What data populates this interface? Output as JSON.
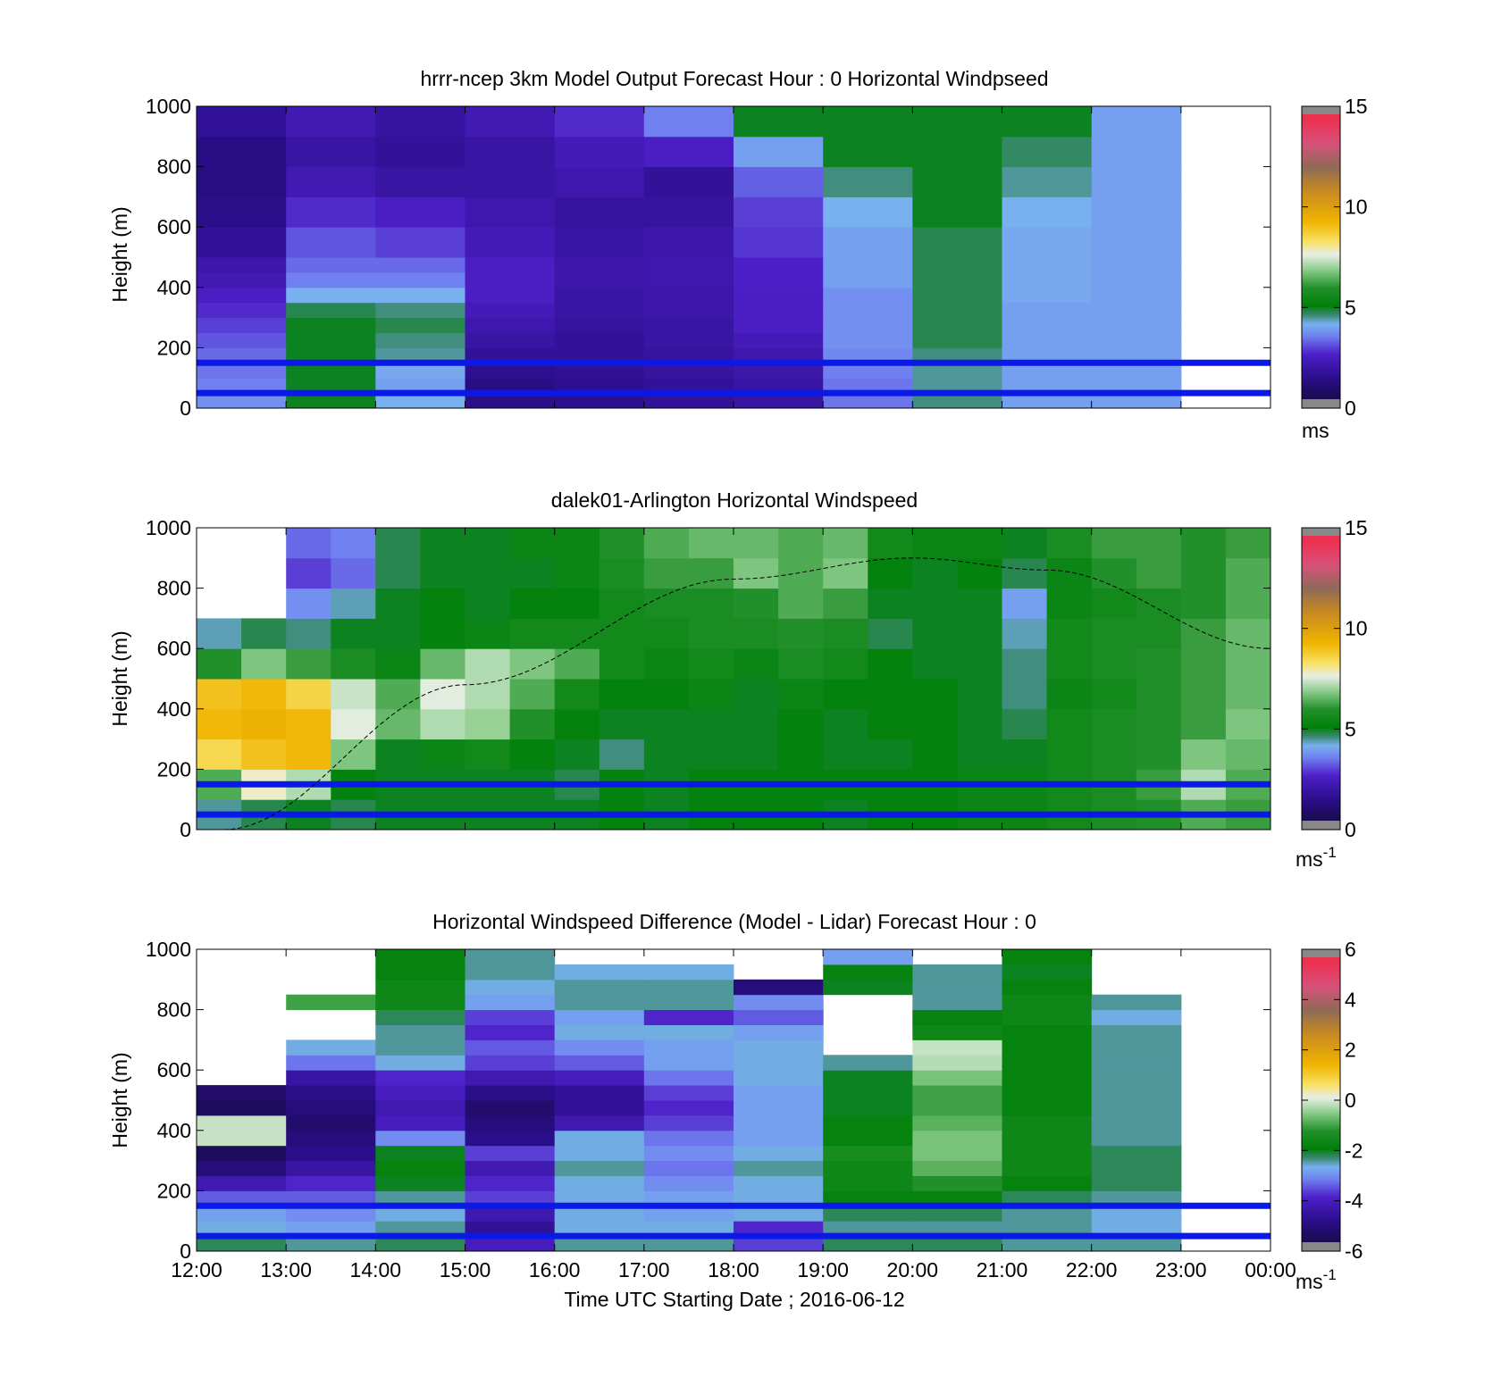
{
  "x_axis": {
    "title": "Time UTC  Starting Date ; 2016-06-12",
    "ticks": [
      "12:00",
      "13:00",
      "14:00",
      "15:00",
      "16:00",
      "17:00",
      "18:00",
      "19:00",
      "20:00",
      "21:00",
      "22:00",
      "23:00",
      "00:00"
    ],
    "range_hours": [
      12,
      24
    ]
  },
  "chart_data": [
    {
      "type": "heatmap",
      "title": "hrrr-ncep 3km Model Output   Forecast Hour : 0 Horizontal Windpseed",
      "ylabel": "Height (m)",
      "ylim": [
        0,
        1000
      ],
      "yticks": [
        "0",
        "200",
        "400",
        "600",
        "800",
        "1000"
      ],
      "colorbar": {
        "min": 0,
        "max": 15,
        "ticks": [
          "0",
          "5",
          "10",
          "15"
        ],
        "unit": "ms"
      },
      "reference_lines_m": [
        50,
        150
      ],
      "x_hours": [
        12,
        13,
        14,
        15,
        16,
        17,
        18,
        19,
        20,
        21,
        22
      ],
      "height_bands_m": [
        0,
        50,
        100,
        150,
        200,
        250,
        300,
        350,
        400,
        450,
        500,
        600,
        700,
        800,
        900,
        1000
      ],
      "values_ms": [
        [
          3.8,
          5.0,
          4.2,
          1.5,
          1.6,
          1.8,
          2.0,
          3.5,
          4.6,
          4.0,
          4.0
        ],
        [
          3.6,
          5.0,
          4.0,
          1.4,
          1.6,
          1.8,
          2.0,
          3.5,
          4.5,
          4.0,
          4.0
        ],
        [
          3.5,
          5.0,
          4.1,
          1.6,
          1.7,
          1.9,
          2.1,
          3.6,
          4.5,
          4.0,
          4.0
        ],
        [
          3.4,
          5.0,
          4.5,
          1.8,
          1.8,
          1.9,
          2.2,
          3.7,
          4.6,
          4.0,
          4.0
        ],
        [
          3.2,
          5.0,
          4.6,
          2.0,
          1.8,
          2.0,
          2.4,
          3.8,
          4.8,
          4.0,
          4.0
        ],
        [
          3.0,
          5.0,
          4.8,
          2.2,
          1.9,
          2.0,
          2.6,
          3.8,
          4.8,
          4.0,
          4.0
        ],
        [
          2.8,
          4.8,
          4.6,
          2.4,
          2.0,
          2.1,
          2.6,
          3.8,
          4.8,
          4.0,
          4.0
        ],
        [
          2.6,
          4.2,
          4.2,
          2.6,
          2.0,
          2.1,
          2.6,
          3.8,
          4.8,
          4.1,
          4.0
        ],
        [
          2.3,
          3.6,
          3.6,
          2.6,
          2.1,
          2.2,
          2.7,
          4.0,
          4.8,
          4.1,
          4.0
        ],
        [
          2.1,
          3.4,
          3.4,
          2.6,
          2.1,
          2.2,
          2.7,
          4.0,
          4.8,
          4.1,
          4.0
        ],
        [
          1.8,
          3.2,
          3.0,
          2.4,
          2.0,
          2.1,
          2.9,
          4.0,
          4.8,
          4.1,
          4.0
        ],
        [
          1.5,
          2.8,
          2.6,
          2.2,
          1.9,
          1.9,
          3.0,
          4.2,
          5.0,
          4.2,
          4.0
        ],
        [
          1.4,
          2.3,
          2.0,
          2.0,
          2.2,
          1.8,
          3.3,
          4.6,
          5.0,
          4.5,
          4.0
        ],
        [
          1.4,
          2.0,
          1.8,
          2.0,
          2.4,
          2.6,
          4.0,
          5.0,
          5.0,
          4.7,
          4.0
        ],
        [
          1.8,
          2.3,
          1.9,
          2.3,
          2.8,
          3.6,
          5.0,
          5.0,
          5.0,
          5.0,
          4.0
        ]
      ]
    },
    {
      "type": "heatmap",
      "title": "dalek01-Arlington  Horizontal Windspeed",
      "ylabel": "Height (m)",
      "ylim": [
        0,
        1000
      ],
      "yticks": [
        "0",
        "200",
        "400",
        "600",
        "800",
        "1000"
      ],
      "colorbar": {
        "min": 0,
        "max": 15,
        "ticks": [
          "0",
          "5",
          "10",
          "15"
        ],
        "unit": "ms",
        "unit_exp": "-1"
      },
      "reference_lines_m": [
        50,
        150
      ],
      "curve": {
        "style": "dashed",
        "description_x_hours": [
          12.3,
          15,
          18,
          20,
          21.5,
          24
        ],
        "y_m": [
          0,
          480,
          830,
          900,
          860,
          600
        ]
      },
      "x_hours": [
        12,
        12.5,
        13,
        13.5,
        14,
        14.5,
        15,
        15.5,
        16,
        16.5,
        17,
        17.5,
        18,
        18.5,
        19,
        19.5,
        20,
        20.5,
        21,
        21.5,
        22,
        22.5,
        23,
        23.5
      ],
      "height_bands_m": [
        0,
        100,
        200,
        300,
        400,
        500,
        600,
        700,
        800,
        900
      ],
      "values_ms": [
        [
          4.5,
          4.8,
          5.0,
          4.8,
          5.0,
          5.0,
          5.0,
          5.0,
          5.0,
          5.2,
          5.0,
          5.2,
          5.2,
          5.2,
          5.0,
          5.2,
          5.2,
          5.4,
          5.4,
          5.6,
          5.8,
          6.0,
          6.4,
          6.2
        ],
        [
          6.4,
          7.8,
          7.2,
          5.2,
          5.0,
          5.0,
          5.0,
          5.0,
          4.8,
          5.2,
          5.0,
          5.2,
          5.2,
          5.2,
          5.2,
          5.2,
          5.2,
          5.4,
          5.4,
          5.6,
          5.8,
          6.2,
          7.2,
          6.4
        ],
        [
          8.5,
          9.0,
          9.2,
          6.8,
          5.0,
          5.4,
          5.6,
          5.2,
          5.0,
          4.6,
          5.0,
          5.0,
          5.0,
          5.2,
          5.0,
          5.0,
          5.2,
          5.0,
          5.0,
          5.6,
          5.8,
          6.0,
          6.8,
          6.6
        ],
        [
          9.2,
          9.4,
          9.2,
          7.6,
          6.6,
          7.2,
          7.0,
          6.0,
          5.2,
          5.0,
          5.0,
          5.0,
          5.0,
          5.2,
          5.0,
          5.2,
          5.2,
          5.0,
          4.8,
          5.6,
          5.8,
          6.0,
          6.2,
          6.8
        ],
        [
          9.0,
          9.2,
          8.6,
          7.4,
          6.4,
          7.6,
          7.2,
          6.4,
          5.6,
          5.2,
          5.2,
          5.4,
          5.0,
          5.4,
          5.2,
          5.2,
          5.2,
          5.0,
          4.6,
          5.4,
          5.6,
          6.0,
          6.2,
          6.6
        ],
        [
          6.0,
          6.8,
          6.2,
          5.8,
          5.4,
          6.6,
          7.2,
          6.8,
          6.4,
          5.6,
          5.4,
          5.6,
          5.4,
          5.8,
          5.6,
          5.2,
          5.0,
          5.0,
          4.6,
          5.6,
          5.8,
          6.0,
          6.2,
          6.6
        ],
        [
          4.4,
          4.8,
          4.6,
          5.0,
          5.0,
          5.2,
          5.4,
          5.6,
          5.6,
          5.6,
          5.6,
          5.8,
          5.8,
          6.0,
          5.8,
          4.8,
          5.0,
          5.0,
          4.4,
          5.6,
          5.8,
          5.8,
          6.2,
          6.6
        ],
        [
          null,
          null,
          3.8,
          4.4,
          5.0,
          5.2,
          5.0,
          5.2,
          5.2,
          5.6,
          5.8,
          5.8,
          6.0,
          6.4,
          6.2,
          5.0,
          5.0,
          5.0,
          4.0,
          5.4,
          5.6,
          5.8,
          6.0,
          6.4
        ],
        [
          null,
          null,
          3.0,
          3.4,
          4.8,
          5.0,
          5.0,
          5.0,
          5.4,
          5.8,
          6.2,
          6.2,
          6.8,
          6.4,
          6.8,
          5.2,
          5.0,
          5.2,
          4.8,
          5.4,
          6.0,
          6.2,
          6.0,
          6.4
        ],
        [
          null,
          null,
          3.4,
          3.6,
          4.8,
          5.0,
          5.0,
          5.4,
          5.4,
          6.0,
          6.4,
          6.6,
          6.6,
          6.4,
          6.6,
          5.6,
          5.4,
          5.4,
          5.0,
          5.8,
          6.2,
          6.2,
          6.0,
          6.2
        ]
      ]
    },
    {
      "type": "heatmap",
      "title": "Horizontal Windspeed Difference (Model - Lidar) Forecast Hour : 0",
      "ylabel": "Height (m)",
      "ylim": [
        0,
        1000
      ],
      "yticks": [
        "0",
        "200",
        "400",
        "600",
        "800",
        "1000"
      ],
      "colorbar": {
        "min": -6,
        "max": 6,
        "ticks": [
          "-6",
          "-4",
          "-2",
          "0",
          "2",
          "4",
          "6"
        ],
        "unit": "ms",
        "unit_exp": "-1"
      },
      "reference_lines_m": [
        50,
        150
      ],
      "x_hours": [
        12,
        13,
        14,
        15,
        16,
        17,
        18,
        19,
        20,
        21,
        22
      ],
      "height_bands_m": [
        0,
        50,
        100,
        150,
        200,
        250,
        300,
        350,
        400,
        450,
        500,
        550,
        600,
        650,
        700,
        750,
        800,
        850,
        900,
        950
      ],
      "values_ms": [
        [
          -2.2,
          -2.4,
          -2.2,
          -4.0,
          -2.4,
          -2.4,
          -3.6,
          -2.2,
          -2.2,
          -2.4,
          -2.4
        ],
        [
          -2.6,
          -2.8,
          -2.4,
          -4.6,
          -2.6,
          -2.6,
          -3.8,
          -2.4,
          -2.4,
          -2.4,
          -2.6
        ],
        [
          -2.8,
          -3.0,
          -2.6,
          -4.2,
          -2.6,
          -2.8,
          -2.6,
          -2.2,
          -2.2,
          -2.4,
          -2.6
        ],
        [
          -3.4,
          -3.4,
          -2.4,
          -3.6,
          -2.6,
          -2.8,
          -2.6,
          -1.8,
          -1.8,
          -2.2,
          -2.4
        ],
        [
          -4.2,
          -3.8,
          -2.0,
          -3.8,
          -2.6,
          -3.0,
          -2.6,
          -1.6,
          -1.2,
          -1.8,
          -2.2
        ],
        [
          -5.0,
          -4.4,
          -1.8,
          -4.2,
          -2.4,
          -3.2,
          -2.4,
          -1.6,
          -0.8,
          -1.6,
          -2.2
        ],
        [
          -5.4,
          -4.8,
          -2.0,
          -3.6,
          -2.6,
          -3.0,
          -2.6,
          -1.4,
          -0.6,
          -1.6,
          -2.2
        ],
        [
          -0.1,
          -5.0,
          -3.0,
          -4.8,
          -2.6,
          -3.2,
          -2.8,
          -1.8,
          -0.6,
          -1.6,
          -2.4
        ],
        [
          -0.1,
          -5.2,
          -4.0,
          -5.0,
          -4.2,
          -3.6,
          -2.8,
          -1.8,
          -0.8,
          -1.6,
          -2.4
        ],
        [
          -5.4,
          -5.0,
          -4.2,
          -5.2,
          -4.6,
          -3.8,
          -2.8,
          -2.0,
          -1.0,
          -1.8,
          -2.4
        ],
        [
          -5.2,
          -4.8,
          -4.0,
          -4.8,
          -4.6,
          -3.6,
          -2.8,
          -2.0,
          -1.0,
          -1.8,
          -2.4
        ],
        [
          null,
          -4.4,
          -3.8,
          -4.2,
          -4.0,
          -3.2,
          -2.6,
          -2.0,
          -0.6,
          -1.8,
          -2.4
        ],
        [
          null,
          -3.2,
          -2.6,
          -3.6,
          -3.4,
          -2.8,
          -2.6,
          -2.4,
          -0.2,
          -1.8,
          -2.4
        ],
        [
          null,
          -2.6,
          -2.4,
          -3.4,
          -3.0,
          -2.8,
          -2.6,
          null,
          -0.1,
          -1.8,
          -2.4
        ],
        [
          null,
          null,
          -2.4,
          -3.8,
          -2.6,
          -2.6,
          -2.8,
          null,
          -1.6,
          -1.8,
          -2.4
        ],
        [
          null,
          null,
          -2.2,
          -3.6,
          -2.8,
          -3.8,
          -3.4,
          null,
          -1.8,
          -1.6,
          -2.6
        ],
        [
          null,
          -1.0,
          -1.6,
          -2.8,
          -2.4,
          -2.4,
          -3.0,
          null,
          -2.4,
          -1.6,
          -2.4
        ],
        [
          null,
          null,
          -1.6,
          -2.6,
          -2.4,
          -2.4,
          -5.0,
          -2.0,
          -2.4,
          -1.8,
          null
        ],
        [
          null,
          null,
          -1.8,
          -2.4,
          -2.6,
          -2.6,
          null,
          -1.8,
          -2.4,
          -2.0,
          null
        ],
        [
          null,
          null,
          -1.8,
          -2.4,
          null,
          null,
          null,
          -2.8,
          null,
          -1.8,
          null
        ]
      ]
    }
  ]
}
